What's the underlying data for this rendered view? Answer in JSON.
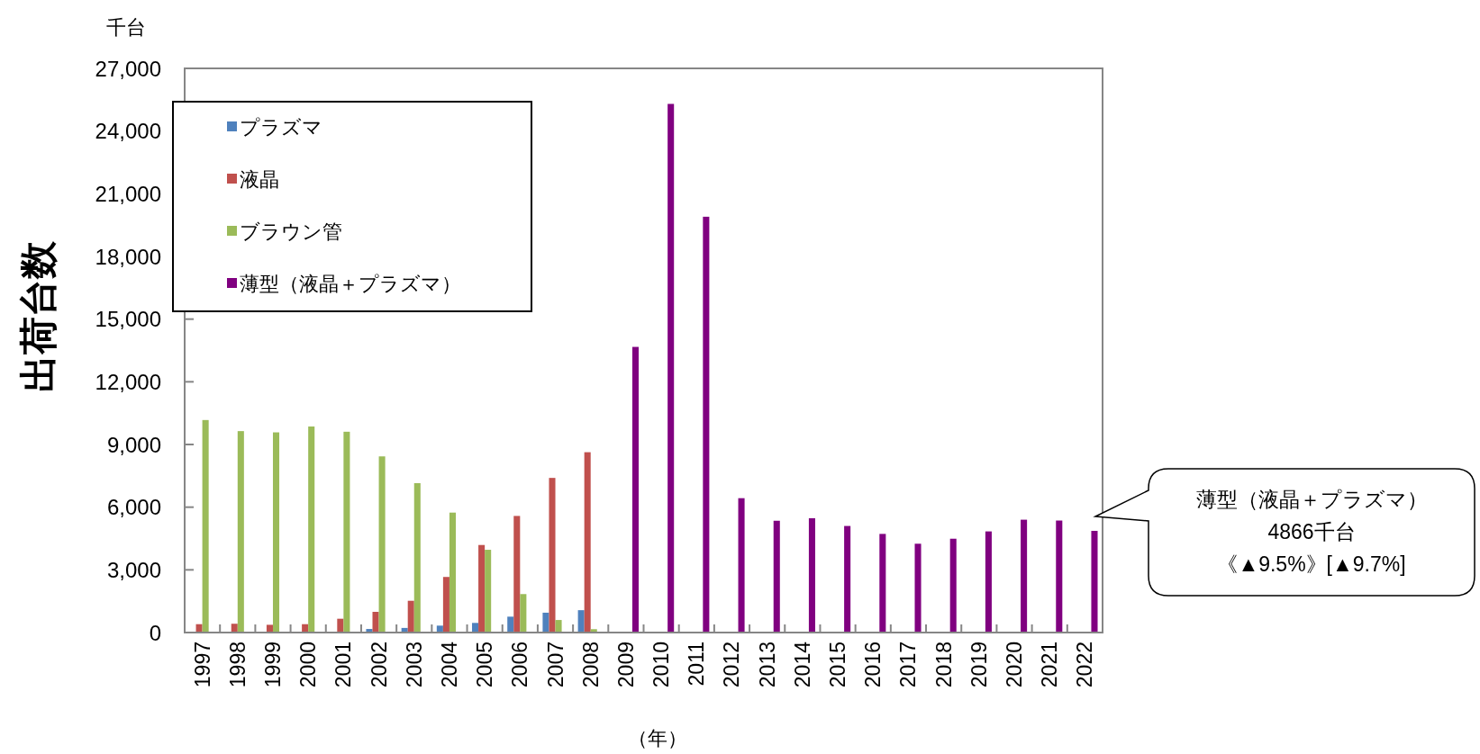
{
  "chart_data": {
    "type": "bar",
    "ylabel": "出荷台数",
    "xlabel": "（年）",
    "categories": [
      "1997",
      "1998",
      "1999",
      "2000",
      "2001",
      "2002",
      "2003",
      "2004",
      "2005",
      "2006",
      "2007",
      "2008",
      "2009",
      "2010",
      "2011",
      "2012",
      "2013",
      "2014",
      "2015",
      "2016",
      "2017",
      "2018",
      "2019",
      "2020",
      "2021",
      "2022"
    ],
    "series": [
      {
        "name": "プラズマ",
        "color": "#4f81bd",
        "values": [
          null,
          null,
          null,
          null,
          null,
          170,
          220,
          330,
          460,
          760,
          950,
          1070,
          null,
          null,
          null,
          null,
          null,
          null,
          null,
          null,
          null,
          null,
          null,
          null,
          null,
          null
        ]
      },
      {
        "name": "液晶",
        "color": "#c0504d",
        "values": [
          400,
          420,
          370,
          400,
          660,
          990,
          1520,
          2660,
          4190,
          5580,
          7400,
          8630,
          null,
          null,
          null,
          null,
          null,
          null,
          null,
          null,
          null,
          null,
          null,
          null,
          null,
          null
        ]
      },
      {
        "name": "ブラウン管",
        "color": "#9bbb59",
        "values": [
          10170,
          9640,
          9580,
          9860,
          9610,
          8430,
          7150,
          5740,
          3960,
          1840,
          600,
          160,
          null,
          null,
          null,
          null,
          null,
          null,
          null,
          null,
          null,
          null,
          null,
          null,
          null,
          null
        ]
      },
      {
        "name": "薄型（液晶＋プラズマ）",
        "color": "#800080",
        "values": [
          null,
          null,
          null,
          null,
          null,
          null,
          null,
          null,
          null,
          null,
          null,
          null,
          13670,
          25300,
          19900,
          6430,
          5350,
          5470,
          5100,
          4720,
          4250,
          4490,
          4840,
          5400,
          5360,
          4866
        ]
      }
    ],
    "ylim": [
      0,
      27000
    ],
    "yticks": [
      0,
      {
        "value": 3000,
        "label": "3,000"
      },
      {
        "value": 6000,
        "label": "6,000"
      },
      {
        "value": 9000,
        "label": "9,000"
      },
      {
        "value": 12000,
        "label": "12,000"
      },
      {
        "value": 15000,
        "label": "15,000"
      },
      {
        "value": 18000,
        "label": "18,000"
      },
      {
        "value": 21000,
        "label": "21,000"
      },
      {
        "value": 24000,
        "label": "24,000"
      },
      {
        "value": 27000,
        "label": "27,000"
      }
    ],
    "legend": "top left",
    "annotations": [
      "千台",
      "薄型（液晶＋プラズマ）",
      "4866千台",
      "《▲9.5%》[▲9.7%]"
    ]
  }
}
